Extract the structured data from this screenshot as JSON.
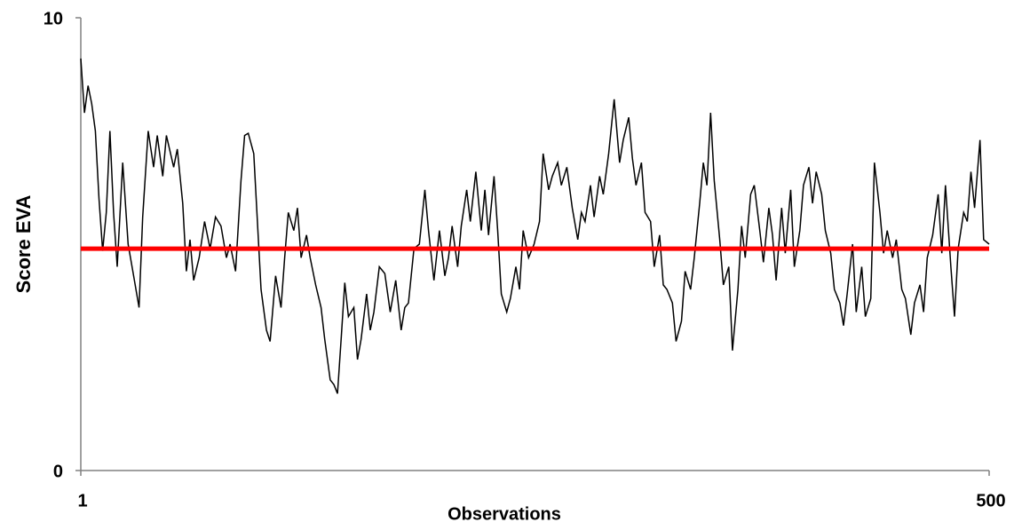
{
  "chart_data": {
    "type": "line",
    "x_label": "Observations",
    "y_label": "Score EVA",
    "xlim": [
      1,
      500
    ],
    "ylim": [
      0,
      10
    ],
    "xticks": [
      1,
      500
    ],
    "yticks": [
      0,
      10
    ],
    "series": [
      {
        "color": "#000000",
        "x": [
          1,
          3,
          5,
          7,
          9,
          11,
          13,
          15,
          17,
          19,
          21,
          24,
          27,
          30,
          33,
          35,
          38,
          41,
          43,
          46,
          48,
          52,
          54,
          57,
          59,
          61,
          63,
          66,
          69,
          72,
          75,
          78,
          81,
          83,
          86,
          89,
          91,
          93,
          96,
          98,
          100,
          103,
          105,
          108,
          111,
          113,
          115,
          118,
          120,
          122,
          125,
          127,
          130,
          133,
          135,
          138,
          140,
          142,
          144,
          146,
          148,
          151,
          153,
          155,
          158,
          160,
          162,
          165,
          168,
          171,
          174,
          177,
          179,
          181,
          184,
          187,
          190,
          192,
          195,
          198,
          201,
          203,
          205,
          208,
          210,
          213,
          215,
          218,
          221,
          223,
          225,
          228,
          230,
          232,
          235,
          237,
          240,
          242,
          244,
          247,
          250,
          253,
          255,
          258,
          260,
          263,
          265,
          268,
          271,
          274,
          276,
          278,
          281,
          283,
          286,
          288,
          291,
          294,
          297,
          299,
          302,
          304,
          306,
          309,
          311,
          314,
          316,
          319,
          321,
          323,
          326,
          328,
          331,
          333,
          336,
          338,
          341,
          343,
          345,
          347,
          349,
          352,
          354,
          357,
          359,
          362,
          364,
          366,
          369,
          371,
          374,
          376,
          379,
          381,
          383,
          386,
          388,
          391,
          393,
          396,
          398,
          401,
          403,
          405,
          408,
          410,
          413,
          415,
          418,
          420,
          422,
          425,
          427,
          430,
          432,
          435,
          437,
          440,
          442,
          444,
          447,
          449,
          452,
          454,
          457,
          459,
          462,
          464,
          466,
          469,
          472,
          474,
          476,
          479,
          481,
          483,
          486,
          488,
          490,
          492,
          495,
          497,
          500
        ],
        "values": [
          9.1,
          7.9,
          8.5,
          8.1,
          7.5,
          6.0,
          4.85,
          5.7,
          7.5,
          5.7,
          4.5,
          6.8,
          5.0,
          4.3,
          3.6,
          5.6,
          7.5,
          6.7,
          7.4,
          6.5,
          7.4,
          6.7,
          7.1,
          5.9,
          4.4,
          5.1,
          4.2,
          4.7,
          5.5,
          4.9,
          5.6,
          5.4,
          4.7,
          5.0,
          4.4,
          6.4,
          7.4,
          7.45,
          7.0,
          5.5,
          4.0,
          3.1,
          2.85,
          4.3,
          3.6,
          4.7,
          5.7,
          5.3,
          5.8,
          4.7,
          5.2,
          4.7,
          4.1,
          3.6,
          2.9,
          2.0,
          1.9,
          1.7,
          2.9,
          4.15,
          3.4,
          3.6,
          2.45,
          2.9,
          3.9,
          3.1,
          3.5,
          4.5,
          4.35,
          3.5,
          4.2,
          3.1,
          3.6,
          3.7,
          4.9,
          5.0,
          6.2,
          5.3,
          4.2,
          5.3,
          4.3,
          4.7,
          5.4,
          4.5,
          5.4,
          6.2,
          5.5,
          6.6,
          5.3,
          6.2,
          5.2,
          6.5,
          5.3,
          3.9,
          3.5,
          3.8,
          4.5,
          4.0,
          5.3,
          4.7,
          5.0,
          5.5,
          7.0,
          6.2,
          6.5,
          6.8,
          6.3,
          6.7,
          5.8,
          5.1,
          5.7,
          5.5,
          6.3,
          5.6,
          6.5,
          6.1,
          7.0,
          8.2,
          6.8,
          7.3,
          7.8,
          6.9,
          6.3,
          6.8,
          5.7,
          5.5,
          4.5,
          5.2,
          4.1,
          4.0,
          3.7,
          2.85,
          3.3,
          4.4,
          4.0,
          4.7,
          5.9,
          6.8,
          6.3,
          7.9,
          6.4,
          5.1,
          4.1,
          4.5,
          2.65,
          4.0,
          5.4,
          4.7,
          6.1,
          6.3,
          5.3,
          4.6,
          5.8,
          5.2,
          4.2,
          5.8,
          4.8,
          6.2,
          4.5,
          5.3,
          6.3,
          6.7,
          5.9,
          6.6,
          6.1,
          5.3,
          4.8,
          4.0,
          3.7,
          3.2,
          3.9,
          5.0,
          3.5,
          4.5,
          3.4,
          3.8,
          6.8,
          5.7,
          4.8,
          5.3,
          4.7,
          5.1,
          4.0,
          3.8,
          3.0,
          3.7,
          4.1,
          3.5,
          4.7,
          5.2,
          6.1,
          4.8,
          6.3,
          4.5,
          3.4,
          4.9,
          5.7,
          5.5,
          6.6,
          5.8,
          7.3,
          5.1,
          5.0
        ]
      },
      {
        "color": "#ff0000",
        "x": [
          1,
          500
        ],
        "values": [
          4.9,
          4.9
        ]
      }
    ]
  }
}
